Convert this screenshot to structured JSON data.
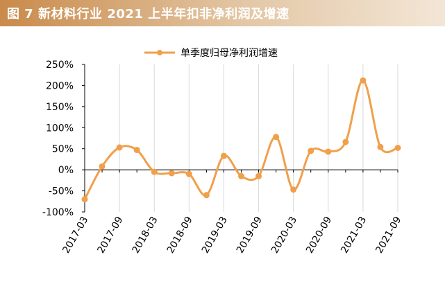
{
  "title": "图 7 新材料行业 2021 上半年扣非净利润及增速",
  "chart_data": {
    "type": "line",
    "title": "",
    "xlabel": "",
    "ylabel": "",
    "ylim": [
      -100,
      250
    ],
    "y_ticks": [
      "250%",
      "200%",
      "150%",
      "100%",
      "50%",
      "0%",
      "-50%",
      "-100%"
    ],
    "x_tick_labels": [
      "2017-03",
      "2017-09",
      "2018-03",
      "2018-09",
      "2019-03",
      "2019-09",
      "2020-03",
      "2020-09",
      "2021-03",
      "2021-09"
    ],
    "grid": "vertical",
    "legend_position": "top-center",
    "categories": [
      "2017-03",
      "2017-06",
      "2017-09",
      "2017-12",
      "2018-03",
      "2018-06",
      "2018-09",
      "2018-12",
      "2019-03",
      "2019-06",
      "2019-09",
      "2019-12",
      "2020-03",
      "2020-06",
      "2020-09",
      "2020-12",
      "2021-03",
      "2021-06",
      "2021-09"
    ],
    "series": [
      {
        "name": "单季度归母净利润增速",
        "color": "#f0a04b",
        "values": [
          -70,
          8,
          53,
          47,
          -5,
          -8,
          -10,
          -60,
          33,
          -15,
          -15,
          78,
          -47,
          45,
          43,
          66,
          212,
          54,
          52
        ]
      }
    ]
  }
}
